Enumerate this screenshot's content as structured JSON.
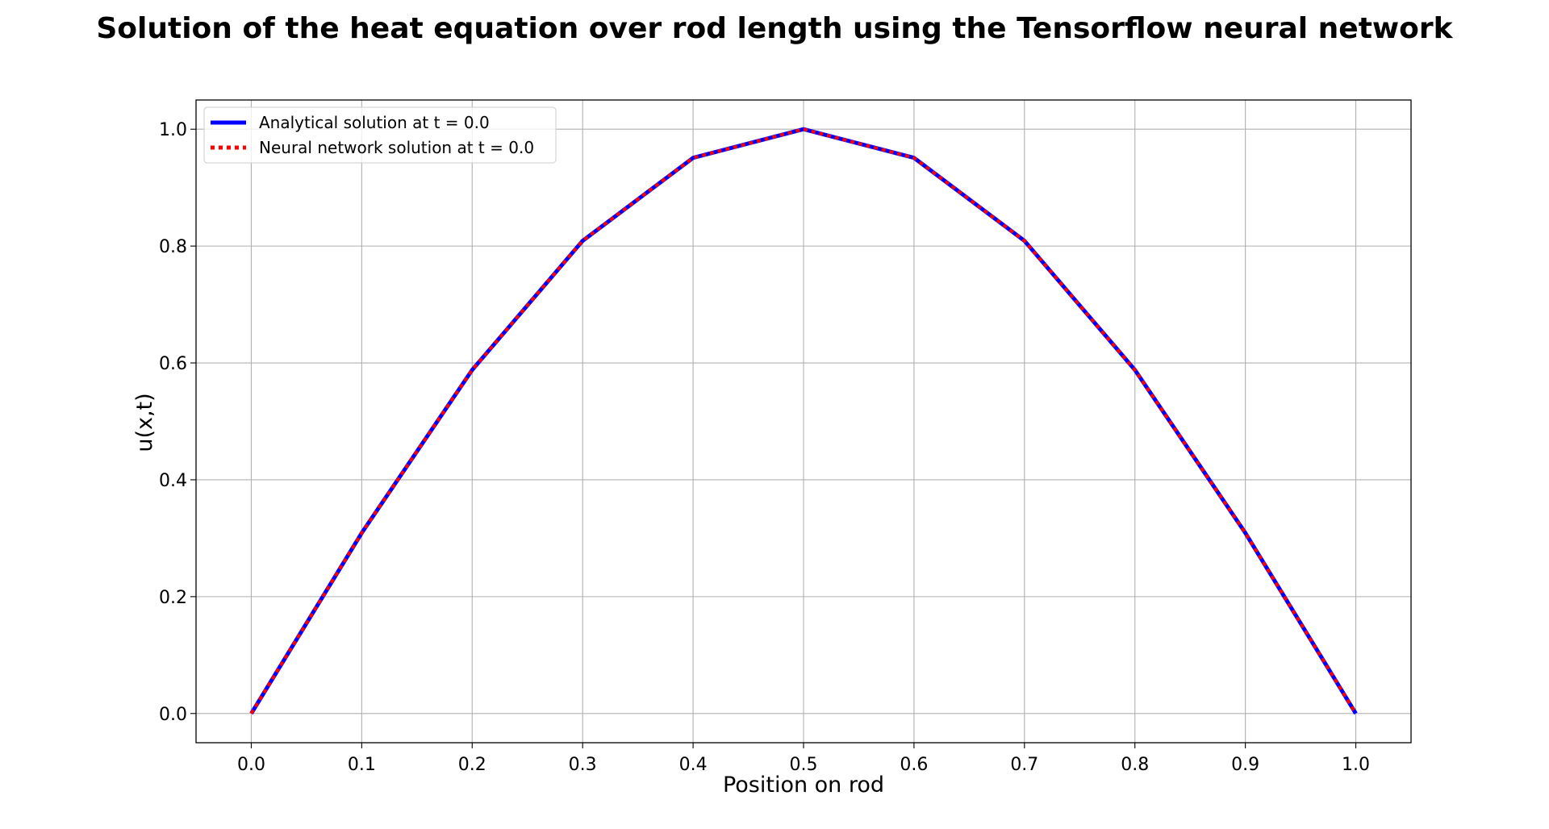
{
  "chart_data": {
    "type": "line",
    "title": "Solution of the heat equation over rod length using the Tensorflow neural network",
    "xlabel": "Position on rod",
    "ylabel": "u(x,t)",
    "xlim": [
      -0.05,
      1.05
    ],
    "ylim": [
      -0.05,
      1.05
    ],
    "xticks": [
      0.0,
      0.1,
      0.2,
      0.3,
      0.4,
      0.5,
      0.6,
      0.7,
      0.8,
      0.9,
      1.0
    ],
    "xtick_labels": [
      "0.0",
      "0.1",
      "0.2",
      "0.3",
      "0.4",
      "0.5",
      "0.6",
      "0.7",
      "0.8",
      "0.9",
      "1.0"
    ],
    "yticks": [
      0.0,
      0.2,
      0.4,
      0.6,
      0.8,
      1.0
    ],
    "ytick_labels": [
      "0.0",
      "0.2",
      "0.4",
      "0.6",
      "0.8",
      "1.0"
    ],
    "grid": true,
    "legend_position": "top-left",
    "x": [
      0.0,
      0.1,
      0.2,
      0.3,
      0.4,
      0.5,
      0.6,
      0.7,
      0.8,
      0.9,
      1.0
    ],
    "series": [
      {
        "name": "Analytical solution at t = 0.0",
        "values": [
          0.0,
          0.309,
          0.588,
          0.809,
          0.951,
          1.0,
          0.951,
          0.809,
          0.588,
          0.309,
          0.0
        ],
        "color": "#0000ff",
        "style": "solid"
      },
      {
        "name": "Neural network solution at t = 0.0",
        "values": [
          0.0,
          0.309,
          0.588,
          0.809,
          0.951,
          1.0,
          0.951,
          0.809,
          0.588,
          0.309,
          0.0
        ],
        "color": "#ff0000",
        "style": "dotted"
      }
    ]
  }
}
